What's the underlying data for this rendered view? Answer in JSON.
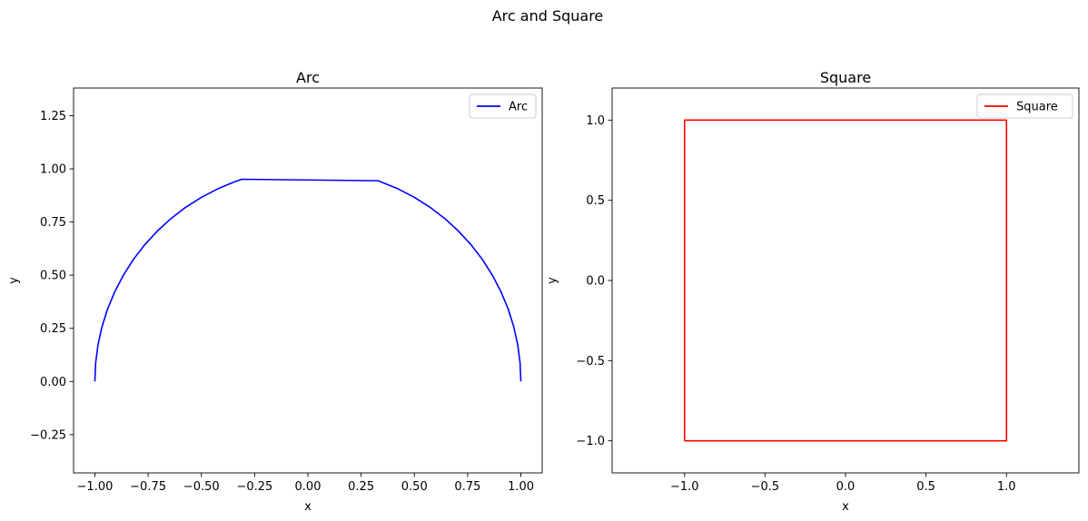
{
  "figure": {
    "suptitle": "Arc and Square"
  },
  "chart_data": [
    {
      "type": "line",
      "title": "Arc",
      "xlabel": "x",
      "ylabel": "y",
      "xlim": [
        -1.1,
        1.1
      ],
      "ylim": [
        -0.43,
        1.38
      ],
      "xticks": [
        -1.0,
        -0.75,
        -0.5,
        -0.25,
        0.0,
        0.25,
        0.5,
        0.75,
        1.0
      ],
      "xtick_labels": [
        "−1.00",
        "−0.75",
        "−0.50",
        "−0.25",
        "0.00",
        "0.25",
        "0.50",
        "0.75",
        "1.00"
      ],
      "yticks": [
        -0.25,
        0.0,
        0.25,
        0.5,
        0.75,
        1.0,
        1.25
      ],
      "ytick_labels": [
        "−0.25",
        "0.00",
        "0.25",
        "0.50",
        "0.75",
        "1.00",
        "1.25"
      ],
      "grid": false,
      "legend": "top-right",
      "series": [
        {
          "name": "Arc",
          "color": "#0000ff",
          "points": [
            [
              1.0,
              0.0
            ],
            [
              0.996,
              0.09
            ],
            [
              0.985,
              0.174
            ],
            [
              0.966,
              0.259
            ],
            [
              0.94,
              0.342
            ],
            [
              0.906,
              0.423
            ],
            [
              0.866,
              0.5
            ],
            [
              0.819,
              0.574
            ],
            [
              0.766,
              0.643
            ],
            [
              0.707,
              0.707
            ],
            [
              0.643,
              0.766
            ],
            [
              0.574,
              0.819
            ],
            [
              0.5,
              0.866
            ],
            [
              0.423,
              0.906
            ],
            [
              0.33,
              0.944
            ],
            [
              -0.31,
              0.951
            ],
            [
              -0.342,
              0.94
            ],
            [
              -0.423,
              0.906
            ],
            [
              -0.5,
              0.866
            ],
            [
              -0.574,
              0.819
            ],
            [
              -0.643,
              0.766
            ],
            [
              -0.707,
              0.707
            ],
            [
              -0.766,
              0.643
            ],
            [
              -0.819,
              0.574
            ],
            [
              -0.866,
              0.5
            ],
            [
              -0.906,
              0.423
            ],
            [
              -0.94,
              0.342
            ],
            [
              -0.966,
              0.259
            ],
            [
              -0.985,
              0.174
            ],
            [
              -0.996,
              0.09
            ],
            [
              -1.0,
              0.0
            ]
          ]
        }
      ]
    },
    {
      "type": "line",
      "title": "Square",
      "xlabel": "x",
      "ylabel": "y",
      "xlim": [
        -1.45,
        1.45
      ],
      "ylim": [
        -1.2,
        1.2
      ],
      "xticks": [
        -1.0,
        -0.5,
        0.0,
        0.5,
        1.0
      ],
      "xtick_labels": [
        "−1.0",
        "−0.5",
        "0.0",
        "0.5",
        "1.0"
      ],
      "yticks": [
        -1.0,
        -0.5,
        0.0,
        0.5,
        1.0
      ],
      "ytick_labels": [
        "−1.0",
        "−0.5",
        "0.0",
        "0.5",
        "1.0"
      ],
      "grid": false,
      "legend": "top-right",
      "series": [
        {
          "name": "Square",
          "color": "#ff0000",
          "points": [
            [
              -1,
              -1
            ],
            [
              1,
              -1
            ],
            [
              1,
              1
            ],
            [
              -1,
              1
            ],
            [
              -1,
              -1
            ]
          ]
        }
      ]
    }
  ]
}
